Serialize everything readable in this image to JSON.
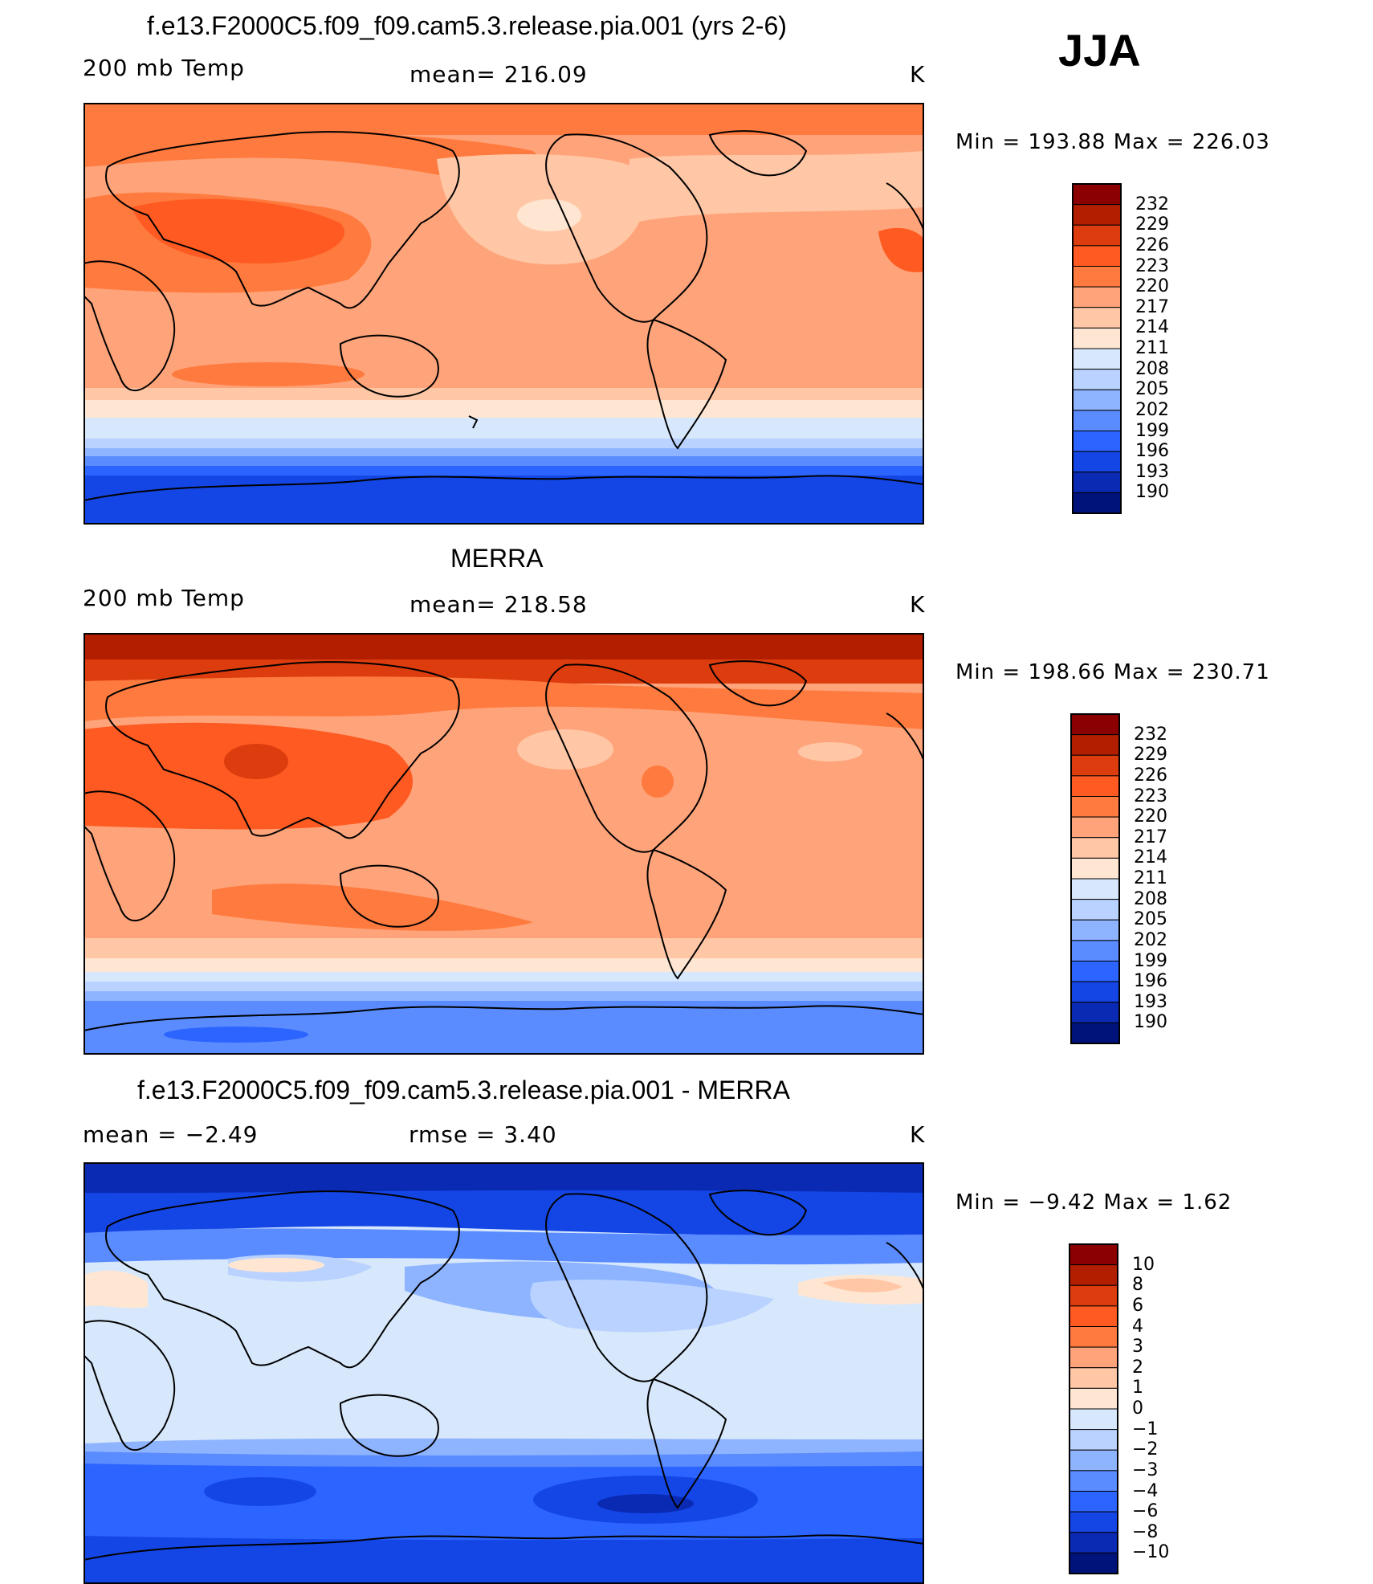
{
  "season": "JJA",
  "panels": [
    {
      "id": "model",
      "title": "f.e13.F2000C5.f09_f09.cam5.3.release.pia.001 (yrs 2-6)",
      "left_label": "200 mb Temp",
      "center_label": "mean=  216.09",
      "units": "K",
      "minmax": "Min  =  193.88  Max  =  226.03",
      "levels": [
        "232",
        "229",
        "226",
        "223",
        "220",
        "217",
        "214",
        "211",
        "208",
        "205",
        "202",
        "199",
        "196",
        "193",
        "190"
      ],
      "colors": [
        "#8b0000",
        "#b21e00",
        "#dd3c0e",
        "#ff5a22",
        "#ff7a3e",
        "#ffa47a",
        "#ffc7a6",
        "#ffe6d2",
        "#d7e8fc",
        "#b9d2ff",
        "#8fb4ff",
        "#5a8cff",
        "#2c64ff",
        "#1446e6",
        "#0a2ab4",
        "#00137a"
      ]
    },
    {
      "id": "obs",
      "title": "MERRA",
      "left_label": "200 mb Temp",
      "center_label": "mean=  218.58",
      "units": "K",
      "minmax": "Min  =  198.66  Max  =  230.71",
      "levels": [
        "232",
        "229",
        "226",
        "223",
        "220",
        "217",
        "214",
        "211",
        "208",
        "205",
        "202",
        "199",
        "196",
        "193",
        "190"
      ],
      "colors": [
        "#8b0000",
        "#b21e00",
        "#dd3c0e",
        "#ff5a22",
        "#ff7a3e",
        "#ffa47a",
        "#ffc7a6",
        "#ffe6d2",
        "#d7e8fc",
        "#b9d2ff",
        "#8fb4ff",
        "#5a8cff",
        "#2c64ff",
        "#1446e6",
        "#0a2ab4",
        "#00137a"
      ]
    },
    {
      "id": "diff",
      "title": "f.e13.F2000C5.f09_f09.cam5.3.release.pia.001 - MERRA",
      "left_label": "mean =    −2.49",
      "center_label": "rmse =     3.40",
      "units": "K",
      "minmax": "Min  =    −9.42  Max  =      1.62",
      "levels": [
        "10",
        "8",
        "6",
        "4",
        "3",
        "2",
        "1",
        "0",
        "−1",
        "−2",
        "−3",
        "−4",
        "−6",
        "−8",
        "−10"
      ],
      "colors": [
        "#8b0000",
        "#b21e00",
        "#dd3c0e",
        "#ff5a22",
        "#ff7a3e",
        "#ffa47a",
        "#ffc7a6",
        "#ffe6d2",
        "#d7e8fc",
        "#b9d2ff",
        "#8fb4ff",
        "#5a8cff",
        "#2c64ff",
        "#1446e6",
        "#0a2ab4",
        "#00137a"
      ]
    }
  ]
}
